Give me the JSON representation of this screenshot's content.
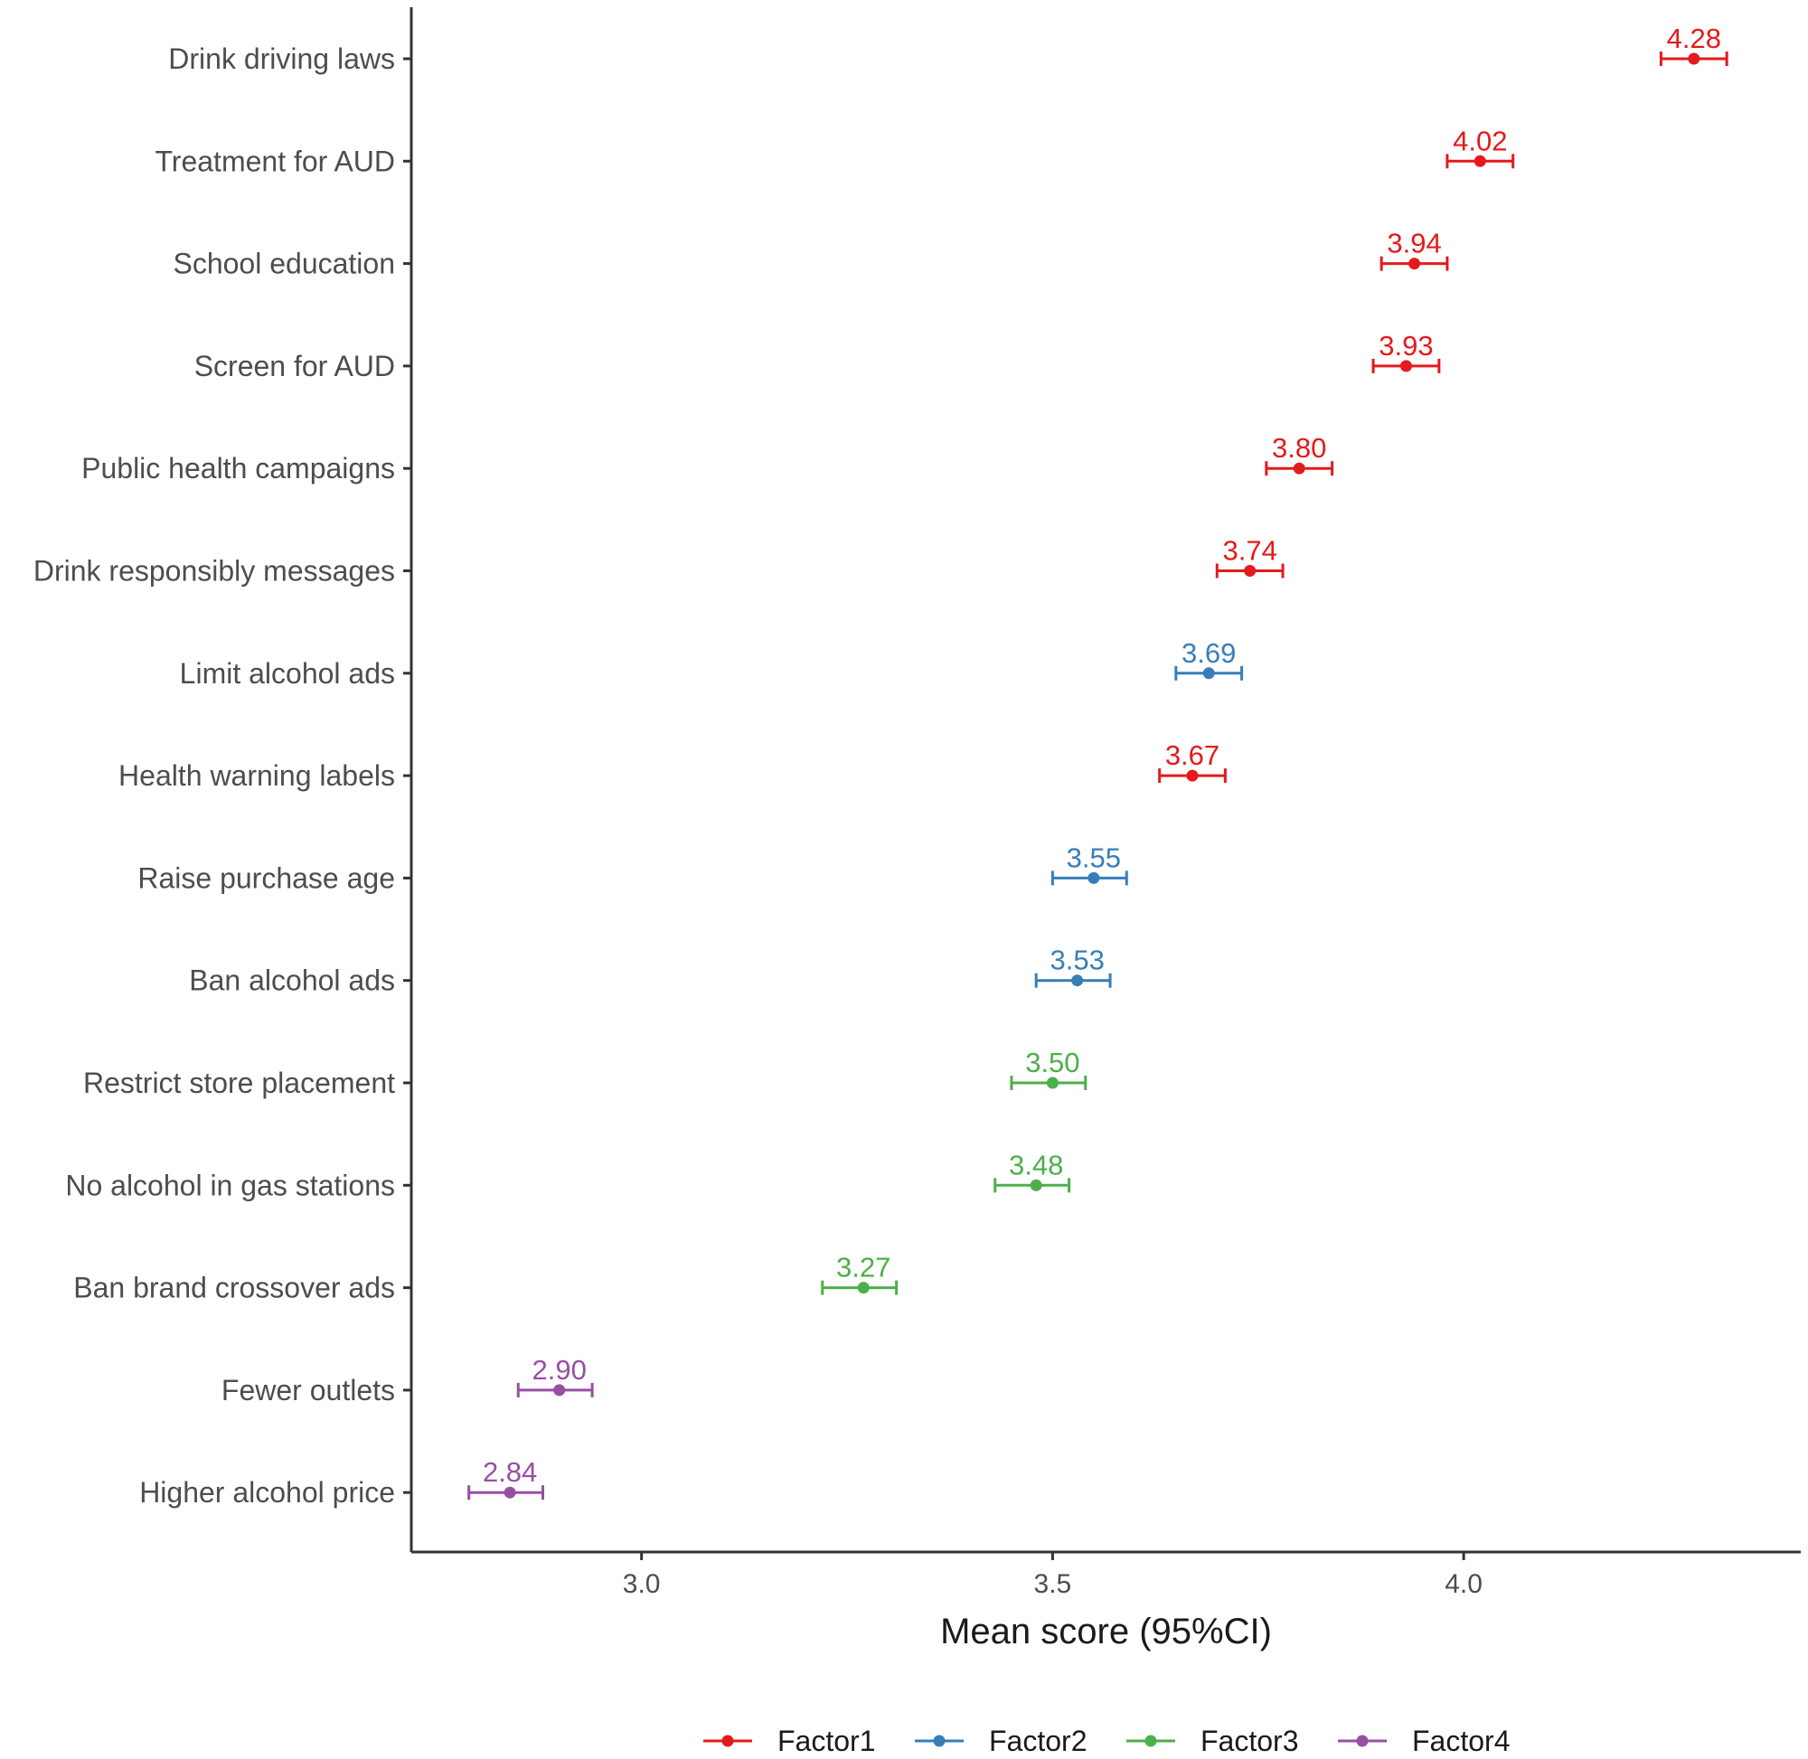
{
  "chart_data": {
    "type": "scatter",
    "subtype": "dot-with-error-bars",
    "title": "",
    "xlabel": "Mean score (95%CI)",
    "ylabel": "",
    "xlim": [
      2.72,
      4.41
    ],
    "xticks": [
      3.0,
      3.5,
      4.0
    ],
    "xtick_labels": [
      "3.0",
      "3.5",
      "4.0"
    ],
    "grid": false,
    "legend_position": "bottom",
    "series_colors": {
      "Factor1": "#e41a1c",
      "Factor2": "#377eb8",
      "Factor3": "#4daf4a",
      "Factor4": "#984ea3"
    },
    "legend": [
      "Factor1",
      "Factor2",
      "Factor3",
      "Factor4"
    ],
    "points": [
      {
        "label": "Drink driving laws",
        "value": 4.28,
        "value_label": "4.28",
        "low": 4.24,
        "high": 4.32,
        "factor": "Factor1"
      },
      {
        "label": "Treatment for AUD",
        "value": 4.02,
        "value_label": "4.02",
        "low": 3.98,
        "high": 4.06,
        "factor": "Factor1"
      },
      {
        "label": "School education",
        "value": 3.94,
        "value_label": "3.94",
        "low": 3.9,
        "high": 3.98,
        "factor": "Factor1"
      },
      {
        "label": "Screen for AUD",
        "value": 3.93,
        "value_label": "3.93",
        "low": 3.89,
        "high": 3.97,
        "factor": "Factor1"
      },
      {
        "label": "Public health campaigns",
        "value": 3.8,
        "value_label": "3.80",
        "low": 3.76,
        "high": 3.84,
        "factor": "Factor1"
      },
      {
        "label": "Drink responsibly messages",
        "value": 3.74,
        "value_label": "3.74",
        "low": 3.7,
        "high": 3.78,
        "factor": "Factor1"
      },
      {
        "label": "Limit alcohol ads",
        "value": 3.69,
        "value_label": "3.69",
        "low": 3.65,
        "high": 3.73,
        "factor": "Factor2"
      },
      {
        "label": "Health warning labels",
        "value": 3.67,
        "value_label": "3.67",
        "low": 3.63,
        "high": 3.71,
        "factor": "Factor1"
      },
      {
        "label": "Raise purchase age",
        "value": 3.55,
        "value_label": "3.55",
        "low": 3.5,
        "high": 3.59,
        "factor": "Factor2"
      },
      {
        "label": "Ban alcohol ads",
        "value": 3.53,
        "value_label": "3.53",
        "low": 3.48,
        "high": 3.57,
        "factor": "Factor2"
      },
      {
        "label": "Restrict store placement",
        "value": 3.5,
        "value_label": "3.50",
        "low": 3.45,
        "high": 3.54,
        "factor": "Factor3"
      },
      {
        "label": "No alcohol in gas stations",
        "value": 3.48,
        "value_label": "3.48",
        "low": 3.43,
        "high": 3.52,
        "factor": "Factor3"
      },
      {
        "label": "Ban brand crossover ads",
        "value": 3.27,
        "value_label": "3.27",
        "low": 3.22,
        "high": 3.31,
        "factor": "Factor3"
      },
      {
        "label": "Fewer outlets",
        "value": 2.9,
        "value_label": "2.90",
        "low": 2.85,
        "high": 2.94,
        "factor": "Factor4"
      },
      {
        "label": "Higher alcohol price",
        "value": 2.84,
        "value_label": "2.84",
        "low": 2.79,
        "high": 2.88,
        "factor": "Factor4"
      }
    ]
  }
}
